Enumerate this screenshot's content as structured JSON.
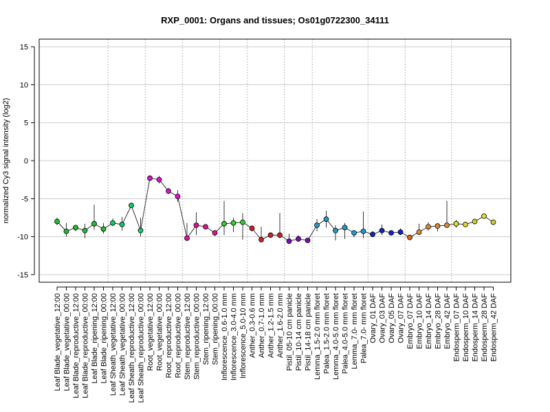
{
  "chart_data": {
    "type": "line",
    "title": "RXP_0001: Organs and tissues; Os01g0722300_34111",
    "ylabel": "normalized Cy3 signal intensity (log2)",
    "xlabel": "",
    "ylim": [
      -16,
      16
    ],
    "yticks": [
      -15,
      -10,
      -5,
      0,
      5,
      10,
      15
    ],
    "grid": true,
    "categories": [
      "Leaf Blade_vegetative_12:00",
      "Leaf Blade_vegetative_00:00",
      "Leaf Blade_reproductive_12:00",
      "Leaf Blade_reproductive_00:00",
      "Leaf Blade_ripening_12:00",
      "Leaf Blade_ripening_00:00",
      "Leaf Sheath_vegetative_12:00",
      "Leaf Sheath_vegetative_00:00",
      "Leaf Sheath_reproductive_12:00",
      "Leaf Sheath_reproductive_00:00",
      "Root_vegetative_12:00",
      "Root_vegetative_00:00",
      "Root_reproductive_12:00",
      "Root_reproductive_00:00",
      "Stem_reproductive_12:00",
      "Stem_reproductive_00:00",
      "Stem_ripening_12:00",
      "Stem_ripening_00:00",
      "Inflorescence_0.6-1.0 mm",
      "Inflorescence_3.0-4.0 mm",
      "Inflorescence_5.0-10 mm",
      "Anther_0.3-0.6 mm",
      "Anther_0.7-1.0 mm",
      "Anther_1.2-1.5 mm",
      "Anther_1.6-2.0 mm",
      "Pistil_05-10 cm panicle",
      "Pistil_10-14 cm panicle",
      "Pistil_14-18 cm panicle",
      "Lemma_1.5-2.0 mm floret",
      "Palea_1.5-2.0 mm floret",
      "Lemma_4.0-5.0 mm floret",
      "Palea_4.0-5.0 mm floret",
      "Lemma_7.0- mm floret",
      "Palea_7.0- mm floret",
      "Ovary_01 DAF",
      "Ovary_03 DAF",
      "Ovary_05 DAF",
      "Ovary_07 DAF",
      "Embryo_07 DAF",
      "Embryo_10 DAF",
      "Embryo_14 DAF",
      "Embryo_28 DAF",
      "Embryo_42 DAF",
      "Endosperm_07 DAF",
      "Endosperm_10 DAF",
      "Endosperm_14 DAF",
      "Endosperm_28 DAF",
      "Endosperm_42 DAF"
    ],
    "values": [
      -8.0,
      -9.3,
      -8.8,
      -9.2,
      -8.3,
      -9.0,
      -8.2,
      -8.4,
      -5.9,
      -9.2,
      -2.3,
      -2.5,
      -4.0,
      -4.7,
      -10.2,
      -8.5,
      -8.7,
      -9.5,
      -8.3,
      -8.2,
      -8.1,
      -8.9,
      -10.4,
      -9.8,
      -9.8,
      -10.6,
      -10.3,
      -10.5,
      -8.5,
      -7.7,
      -9.2,
      -8.8,
      -9.5,
      -9.3,
      -9.7,
      -9.2,
      -9.5,
      -9.4,
      -10.1,
      -9.4,
      -8.7,
      -8.6,
      -8.5,
      -8.3,
      -8.4,
      -8.0,
      -7.3,
      -8.1
    ],
    "error_high": [
      -7.5,
      -8.2,
      -8.5,
      -8.3,
      -5.8,
      -8.2,
      -7.6,
      -7.4,
      -5.5,
      -7.5,
      -2.1,
      -2.0,
      -3.6,
      -3.9,
      -8.2,
      -6.8,
      -8.4,
      -9.2,
      -5.3,
      -7.5,
      -6.9,
      -8.7,
      -8.7,
      -9.6,
      -6.9,
      -9.6,
      -9.8,
      -10.2,
      -7.7,
      -6.6,
      -8.5,
      -8.2,
      -9.3,
      -6.7,
      -9.3,
      -8.4,
      -9.2,
      -8.9,
      -9.9,
      -8.3,
      -8.1,
      -8.2,
      -5.3,
      -7.8,
      -8.2,
      -7.7,
      -7.0,
      -7.8
    ],
    "error_low": [
      -8.5,
      -10.0,
      -9.3,
      -10.2,
      -9.1,
      -9.6,
      -8.6,
      -9.2,
      -6.2,
      -10.0,
      -2.5,
      -3.0,
      -4.4,
      -5.4,
      -10.4,
      -9.8,
      -9.0,
      -9.9,
      -9.8,
      -9.4,
      -10.4,
      -9.3,
      -10.7,
      -10.0,
      -10.2,
      -10.8,
      -10.6,
      -10.8,
      -9.3,
      -8.8,
      -10.5,
      -10.3,
      -10.1,
      -10.2,
      -10.0,
      -9.8,
      -9.8,
      -9.8,
      -10.3,
      -9.8,
      -9.2,
      -9.3,
      -8.8,
      -8.8,
      -8.7,
      -8.4,
      -7.6,
      -8.4
    ],
    "colors": [
      "#22bb33",
      "#22bb33",
      "#22bb33",
      "#22bb33",
      "#22bb33",
      "#22bb33",
      "#11cc66",
      "#11cc66",
      "#11cc66",
      "#11cc66",
      "#dd11cc",
      "#dd11cc",
      "#dd11cc",
      "#dd11cc",
      "#dd1199",
      "#dd1199",
      "#dd1199",
      "#dd1199",
      "#33cc33",
      "#33cc33",
      "#33cc33",
      "#cc2222",
      "#cc2222",
      "#cc2222",
      "#cc2222",
      "#7711aa",
      "#7711aa",
      "#7711aa",
      "#2299cc",
      "#2299cc",
      "#2299cc",
      "#2299cc",
      "#2299cc",
      "#2299cc",
      "#1122cc",
      "#1122cc",
      "#1122cc",
      "#1122cc",
      "#dd6611",
      "#dd8833",
      "#dd8833",
      "#dd8833",
      "#dd8833",
      "#dddd33",
      "#dddd33",
      "#cccc33",
      "#dddd33",
      "#cccc33"
    ],
    "group_separators_after": [
      5,
      9,
      13,
      17,
      20,
      24,
      27,
      33,
      37,
      42
    ]
  }
}
